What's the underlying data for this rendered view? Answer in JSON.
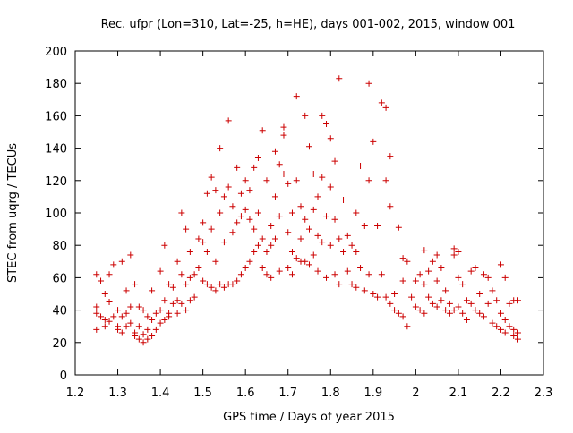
{
  "chart_data": {
    "type": "scatter",
    "title": "Rec. ufpr (Lon=310, Lat=-25, h=HE), days 001-002, 2015, window 001",
    "xlabel": "GPS time / Days of year 2015",
    "ylabel": "STEC from uqrg / TECUs",
    "xlim": [
      1.2,
      2.3
    ],
    "ylim": [
      0,
      200
    ],
    "xticks": [
      1.2,
      1.3,
      1.4,
      1.5,
      1.6,
      1.7,
      1.8,
      1.9,
      2.0,
      2.1,
      2.2,
      2.3
    ],
    "xtick_labels": [
      "1.2",
      "1.3",
      "1.4",
      "1.5",
      "1.6",
      "1.7",
      "1.8",
      "1.9",
      "2",
      "2.1",
      "2.2",
      "2.3"
    ],
    "yticks": [
      0,
      20,
      40,
      60,
      80,
      100,
      120,
      140,
      160,
      180,
      200
    ],
    "ytick_labels": [
      "0",
      "20",
      "40",
      "60",
      "80",
      "100",
      "120",
      "140",
      "160",
      "180",
      "200"
    ],
    "marker": "+",
    "marker_color": "#cc0000",
    "grid": false,
    "series": [
      {
        "name": "STEC",
        "points": [
          [
            1.25,
            42
          ],
          [
            1.25,
            38
          ],
          [
            1.25,
            28
          ],
          [
            1.25,
            62
          ],
          [
            1.26,
            58
          ],
          [
            1.26,
            36
          ],
          [
            1.27,
            34
          ],
          [
            1.27,
            50
          ],
          [
            1.27,
            30
          ],
          [
            1.28,
            45
          ],
          [
            1.28,
            33
          ],
          [
            1.28,
            62
          ],
          [
            1.29,
            36
          ],
          [
            1.29,
            68
          ],
          [
            1.3,
            40
          ],
          [
            1.3,
            30
          ],
          [
            1.3,
            28
          ],
          [
            1.31,
            70
          ],
          [
            1.31,
            36
          ],
          [
            1.31,
            26
          ],
          [
            1.32,
            52
          ],
          [
            1.32,
            38
          ],
          [
            1.32,
            30
          ],
          [
            1.33,
            74
          ],
          [
            1.33,
            42
          ],
          [
            1.33,
            32
          ],
          [
            1.34,
            56
          ],
          [
            1.34,
            26
          ],
          [
            1.34,
            24
          ],
          [
            1.35,
            42
          ],
          [
            1.35,
            30
          ],
          [
            1.35,
            22
          ],
          [
            1.36,
            40
          ],
          [
            1.36,
            25
          ],
          [
            1.36,
            20
          ],
          [
            1.37,
            36
          ],
          [
            1.37,
            28
          ],
          [
            1.37,
            22
          ],
          [
            1.38,
            52
          ],
          [
            1.38,
            34
          ],
          [
            1.38,
            24
          ],
          [
            1.39,
            38
          ],
          [
            1.39,
            28
          ],
          [
            1.4,
            64
          ],
          [
            1.4,
            40
          ],
          [
            1.4,
            32
          ],
          [
            1.41,
            80
          ],
          [
            1.41,
            46
          ],
          [
            1.41,
            34
          ],
          [
            1.42,
            56
          ],
          [
            1.42,
            38
          ],
          [
            1.42,
            36
          ],
          [
            1.43,
            54
          ],
          [
            1.43,
            44
          ],
          [
            1.44,
            70
          ],
          [
            1.44,
            46
          ],
          [
            1.44,
            38
          ],
          [
            1.45,
            100
          ],
          [
            1.45,
            62
          ],
          [
            1.45,
            44
          ],
          [
            1.46,
            90
          ],
          [
            1.46,
            56
          ],
          [
            1.46,
            40
          ],
          [
            1.47,
            76
          ],
          [
            1.47,
            60
          ],
          [
            1.47,
            46
          ],
          [
            1.48,
            62
          ],
          [
            1.48,
            48
          ],
          [
            1.49,
            84
          ],
          [
            1.49,
            66
          ],
          [
            1.5,
            94
          ],
          [
            1.5,
            82
          ],
          [
            1.5,
            58
          ],
          [
            1.51,
            112
          ],
          [
            1.51,
            76
          ],
          [
            1.51,
            56
          ],
          [
            1.52,
            122
          ],
          [
            1.52,
            90
          ],
          [
            1.52,
            54
          ],
          [
            1.53,
            114
          ],
          [
            1.53,
            70
          ],
          [
            1.53,
            52
          ],
          [
            1.54,
            140
          ],
          [
            1.54,
            100
          ],
          [
            1.54,
            56
          ],
          [
            1.55,
            110
          ],
          [
            1.55,
            82
          ],
          [
            1.55,
            54
          ],
          [
            1.56,
            157
          ],
          [
            1.56,
            116
          ],
          [
            1.56,
            56
          ],
          [
            1.57,
            104
          ],
          [
            1.57,
            88
          ],
          [
            1.57,
            56
          ],
          [
            1.58,
            128
          ],
          [
            1.58,
            94
          ],
          [
            1.58,
            58
          ],
          [
            1.59,
            112
          ],
          [
            1.59,
            98
          ],
          [
            1.59,
            62
          ],
          [
            1.6,
            120
          ],
          [
            1.6,
            102
          ],
          [
            1.6,
            66
          ],
          [
            1.61,
            114
          ],
          [
            1.61,
            96
          ],
          [
            1.61,
            70
          ],
          [
            1.62,
            128
          ],
          [
            1.62,
            90
          ],
          [
            1.62,
            76
          ],
          [
            1.63,
            134
          ],
          [
            1.63,
            100
          ],
          [
            1.63,
            80
          ],
          [
            1.64,
            151
          ],
          [
            1.64,
            84
          ],
          [
            1.64,
            66
          ],
          [
            1.65,
            120
          ],
          [
            1.65,
            76
          ],
          [
            1.65,
            62
          ],
          [
            1.66,
            92
          ],
          [
            1.66,
            80
          ],
          [
            1.66,
            60
          ],
          [
            1.67,
            138
          ],
          [
            1.67,
            110
          ],
          [
            1.67,
            84
          ],
          [
            1.68,
            130
          ],
          [
            1.68,
            98
          ],
          [
            1.68,
            64
          ],
          [
            1.69,
            153
          ],
          [
            1.69,
            148
          ],
          [
            1.69,
            124
          ],
          [
            1.7,
            118
          ],
          [
            1.7,
            88
          ],
          [
            1.7,
            66
          ],
          [
            1.71,
            100
          ],
          [
            1.71,
            76
          ],
          [
            1.71,
            62
          ],
          [
            1.72,
            172
          ],
          [
            1.72,
            120
          ],
          [
            1.72,
            72
          ],
          [
            1.73,
            104
          ],
          [
            1.73,
            84
          ],
          [
            1.73,
            70
          ],
          [
            1.74,
            160
          ],
          [
            1.74,
            96
          ],
          [
            1.74,
            70
          ],
          [
            1.75,
            141
          ],
          [
            1.75,
            90
          ],
          [
            1.75,
            68
          ],
          [
            1.76,
            124
          ],
          [
            1.76,
            102
          ],
          [
            1.76,
            74
          ],
          [
            1.77,
            110
          ],
          [
            1.77,
            86
          ],
          [
            1.77,
            64
          ],
          [
            1.78,
            160
          ],
          [
            1.78,
            122
          ],
          [
            1.78,
            82
          ],
          [
            1.79,
            155
          ],
          [
            1.79,
            98
          ],
          [
            1.79,
            60
          ],
          [
            1.8,
            146
          ],
          [
            1.8,
            116
          ],
          [
            1.8,
            80
          ],
          [
            1.81,
            132
          ],
          [
            1.81,
            96
          ],
          [
            1.81,
            62
          ],
          [
            1.82,
            183
          ],
          [
            1.82,
            84
          ],
          [
            1.82,
            56
          ],
          [
            1.83,
            108
          ],
          [
            1.83,
            76
          ],
          [
            1.84,
            86
          ],
          [
            1.84,
            64
          ],
          [
            1.85,
            80
          ],
          [
            1.85,
            56
          ],
          [
            1.86,
            100
          ],
          [
            1.86,
            76
          ],
          [
            1.86,
            54
          ],
          [
            1.87,
            129
          ],
          [
            1.87,
            66
          ],
          [
            1.88,
            92
          ],
          [
            1.88,
            52
          ],
          [
            1.89,
            180
          ],
          [
            1.89,
            120
          ],
          [
            1.89,
            62
          ],
          [
            1.9,
            144
          ],
          [
            1.9,
            50
          ],
          [
            1.91,
            92
          ],
          [
            1.91,
            48
          ],
          [
            1.92,
            168
          ],
          [
            1.92,
            62
          ],
          [
            1.93,
            165
          ],
          [
            1.93,
            120
          ],
          [
            1.93,
            48
          ],
          [
            1.94,
            135
          ],
          [
            1.94,
            104
          ],
          [
            1.94,
            44
          ],
          [
            1.95,
            50
          ],
          [
            1.95,
            40
          ],
          [
            1.96,
            91
          ],
          [
            1.96,
            38
          ],
          [
            1.97,
            72
          ],
          [
            1.97,
            58
          ],
          [
            1.97,
            36
          ],
          [
            1.98,
            70
          ],
          [
            1.98,
            30
          ],
          [
            1.99,
            48
          ],
          [
            2.0,
            58
          ],
          [
            2.0,
            42
          ],
          [
            2.01,
            62
          ],
          [
            2.01,
            40
          ],
          [
            2.02,
            77
          ],
          [
            2.02,
            56
          ],
          [
            2.02,
            38
          ],
          [
            2.03,
            64
          ],
          [
            2.03,
            48
          ],
          [
            2.04,
            70
          ],
          [
            2.04,
            44
          ],
          [
            2.05,
            74
          ],
          [
            2.05,
            58
          ],
          [
            2.05,
            42
          ],
          [
            2.06,
            66
          ],
          [
            2.06,
            46
          ],
          [
            2.07,
            52
          ],
          [
            2.07,
            40
          ],
          [
            2.08,
            44
          ],
          [
            2.08,
            38
          ],
          [
            2.09,
            78
          ],
          [
            2.09,
            74
          ],
          [
            2.09,
            40
          ],
          [
            2.1,
            76
          ],
          [
            2.1,
            60
          ],
          [
            2.1,
            42
          ],
          [
            2.11,
            56
          ],
          [
            2.11,
            38
          ],
          [
            2.12,
            46
          ],
          [
            2.12,
            34
          ],
          [
            2.13,
            64
          ],
          [
            2.13,
            44
          ],
          [
            2.14,
            66
          ],
          [
            2.14,
            40
          ],
          [
            2.15,
            50
          ],
          [
            2.15,
            38
          ],
          [
            2.16,
            62
          ],
          [
            2.16,
            36
          ],
          [
            2.17,
            60
          ],
          [
            2.17,
            44
          ],
          [
            2.18,
            52
          ],
          [
            2.18,
            32
          ],
          [
            2.19,
            46
          ],
          [
            2.19,
            30
          ],
          [
            2.2,
            68
          ],
          [
            2.2,
            38
          ],
          [
            2.2,
            28
          ],
          [
            2.21,
            60
          ],
          [
            2.21,
            34
          ],
          [
            2.21,
            26
          ],
          [
            2.22,
            44
          ],
          [
            2.22,
            30
          ],
          [
            2.23,
            46
          ],
          [
            2.23,
            28
          ],
          [
            2.23,
            24
          ],
          [
            2.24,
            46
          ],
          [
            2.24,
            26
          ],
          [
            2.24,
            22
          ]
        ]
      }
    ]
  }
}
